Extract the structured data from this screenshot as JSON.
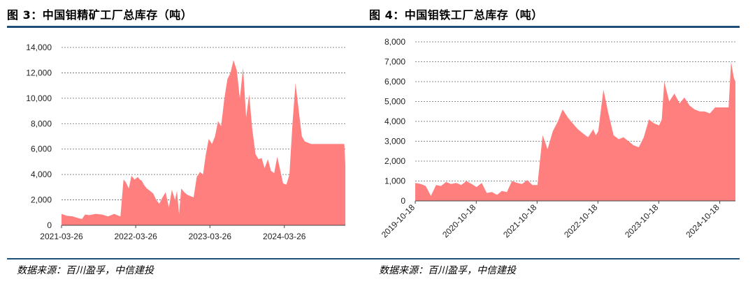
{
  "left": {
    "title": "图 3：中国钼精矿工厂总库存（吨）",
    "source": "数据来源：百川盈孚，中信建投"
  },
  "right": {
    "title": "图 4：中国钼铁工厂总库存（吨）",
    "source": "数据来源：百川盈孚，中信建投"
  },
  "chart_data": [
    {
      "type": "area",
      "title": "图 3：中国钼精矿工厂总库存（吨）",
      "color": "#ff7f7f",
      "grid": true,
      "ylim": [
        0,
        14000
      ],
      "yticks": [
        0,
        2000,
        4000,
        6000,
        8000,
        10000,
        12000,
        14000
      ],
      "ytick_labels": [
        "0",
        "2,000",
        "4,000",
        "6,000",
        "8,000",
        "10,000",
        "12,000",
        "14,000"
      ],
      "xlim": [
        "2021-03-26",
        "2025-01-20"
      ],
      "xticks": [
        "2021-03-26",
        "2022-03-26",
        "2023-03-26",
        "2024-03-26"
      ],
      "x": [
        "2021-03-26",
        "2021-04-20",
        "2021-05-20",
        "2021-06-20",
        "2021-07-05",
        "2021-07-20",
        "2021-08-10",
        "2021-09-10",
        "2021-10-10",
        "2021-11-10",
        "2021-12-10",
        "2022-01-10",
        "2022-01-25",
        "2022-02-05",
        "2022-02-20",
        "2022-03-05",
        "2022-03-20",
        "2022-04-05",
        "2022-04-15",
        "2022-04-25",
        "2022-05-05",
        "2022-05-20",
        "2022-06-05",
        "2022-06-20",
        "2022-07-05",
        "2022-07-20",
        "2022-08-05",
        "2022-08-20",
        "2022-09-05",
        "2022-09-20",
        "2022-10-05",
        "2022-10-15",
        "2022-10-25",
        "2022-11-05",
        "2022-11-20",
        "2022-12-05",
        "2022-12-20",
        "2023-01-05",
        "2023-01-20",
        "2023-02-05",
        "2023-02-20",
        "2023-03-05",
        "2023-03-20",
        "2023-04-05",
        "2023-04-20",
        "2023-05-05",
        "2023-05-20",
        "2023-06-05",
        "2023-06-20",
        "2023-07-05",
        "2023-07-20",
        "2023-08-05",
        "2023-08-20",
        "2023-09-05",
        "2023-09-20",
        "2023-10-05",
        "2023-10-20",
        "2023-11-05",
        "2023-11-20",
        "2023-12-05",
        "2023-12-20",
        "2024-01-05",
        "2024-01-20",
        "2024-02-05",
        "2024-02-20",
        "2024-03-05",
        "2024-03-20",
        "2024-04-05",
        "2024-04-20",
        "2024-05-05",
        "2024-05-20",
        "2024-06-05",
        "2024-06-20",
        "2024-07-05",
        "2024-07-20",
        "2024-08-05",
        "2024-08-20",
        "2024-09-05",
        "2024-09-20",
        "2024-10-05",
        "2024-10-15",
        "2024-10-25",
        "2024-11-05",
        "2024-11-20",
        "2024-12-05",
        "2024-12-20",
        "2025-01-05",
        "2025-01-15",
        "2025-01-20"
      ],
      "values": [
        900,
        750,
        700,
        550,
        500,
        850,
        800,
        900,
        850,
        700,
        900,
        700,
        3600,
        3400,
        2900,
        3900,
        3600,
        3800,
        3600,
        3500,
        3200,
        2900,
        2700,
        2500,
        2000,
        1700,
        2200,
        2600,
        1400,
        2800,
        2000,
        2700,
        900,
        2900,
        2600,
        2400,
        2300,
        2200,
        3800,
        4200,
        4000,
        5500,
        6800,
        6400,
        7000,
        8200,
        7800,
        10000,
        11500,
        12000,
        13000,
        12200,
        10000,
        12400,
        8500,
        10300,
        7600,
        5600,
        5200,
        5300,
        4500,
        5200,
        4300,
        4100,
        5400,
        4400,
        3300,
        3200,
        4000,
        8000,
        11200,
        9000,
        7000,
        6600,
        6500,
        6400,
        6400,
        6400,
        6400,
        6400,
        6400,
        6400,
        6400,
        6400,
        6400,
        6400,
        6400,
        6400,
        4800
      ]
    },
    {
      "type": "area",
      "title": "图 4：中国钼铁工厂总库存（吨）",
      "color": "#ff7f7f",
      "grid": true,
      "ylim": [
        0,
        8000
      ],
      "yticks": [
        0,
        1000,
        2000,
        3000,
        4000,
        5000,
        6000,
        7000,
        8000
      ],
      "ytick_labels": [
        "0",
        "1,000",
        "2,000",
        "3,000",
        "4,000",
        "5,000",
        "6,000",
        "7,000",
        "8,000"
      ],
      "xlim": [
        "2019-10-18",
        "2025-01-20"
      ],
      "xticks": [
        "2019-10-18",
        "2020-10-18",
        "2021-10-18",
        "2022-10-18",
        "2023-10-18",
        "2024-10-18"
      ],
      "x": [
        "2019-10-18",
        "2019-11-20",
        "2019-12-20",
        "2020-01-20",
        "2020-02-20",
        "2020-03-20",
        "2020-04-20",
        "2020-05-20",
        "2020-06-20",
        "2020-07-20",
        "2020-08-20",
        "2020-09-20",
        "2020-10-20",
        "2020-11-20",
        "2020-12-20",
        "2021-01-20",
        "2021-02-20",
        "2021-03-20",
        "2021-04-20",
        "2021-05-20",
        "2021-06-20",
        "2021-07-20",
        "2021-08-20",
        "2021-09-20",
        "2021-10-20",
        "2021-11-20",
        "2021-12-20",
        "2022-01-20",
        "2022-02-20",
        "2022-03-20",
        "2022-04-20",
        "2022-05-20",
        "2022-06-20",
        "2022-07-20",
        "2022-08-20",
        "2022-09-20",
        "2022-10-05",
        "2022-10-20",
        "2022-11-20",
        "2022-12-20",
        "2023-01-20",
        "2023-02-20",
        "2023-03-20",
        "2023-04-20",
        "2023-05-20",
        "2023-06-20",
        "2023-07-20",
        "2023-08-20",
        "2023-09-20",
        "2023-10-20",
        "2023-11-05",
        "2023-11-20",
        "2023-12-20",
        "2024-01-20",
        "2024-02-20",
        "2024-03-20",
        "2024-04-20",
        "2024-05-20",
        "2024-06-20",
        "2024-07-20",
        "2024-08-20",
        "2024-09-20",
        "2024-10-20",
        "2024-11-20",
        "2024-12-10",
        "2024-12-25",
        "2025-01-10",
        "2025-01-20"
      ],
      "values": [
        900,
        850,
        750,
        250,
        800,
        750,
        950,
        850,
        900,
        800,
        1000,
        850,
        700,
        900,
        400,
        450,
        300,
        500,
        450,
        1000,
        900,
        850,
        1050,
        800,
        800,
        3300,
        2600,
        3500,
        4000,
        4600,
        4200,
        3900,
        3600,
        3400,
        3200,
        3600,
        3300,
        3500,
        5600,
        4400,
        3300,
        3100,
        3200,
        3000,
        2800,
        2700,
        3200,
        4100,
        3900,
        3800,
        4100,
        6000,
        5000,
        5400,
        4900,
        5200,
        4800,
        4600,
        4500,
        4500,
        4400,
        4700,
        4700,
        4700,
        4700,
        7000,
        6200,
        6000
      ]
    }
  ]
}
